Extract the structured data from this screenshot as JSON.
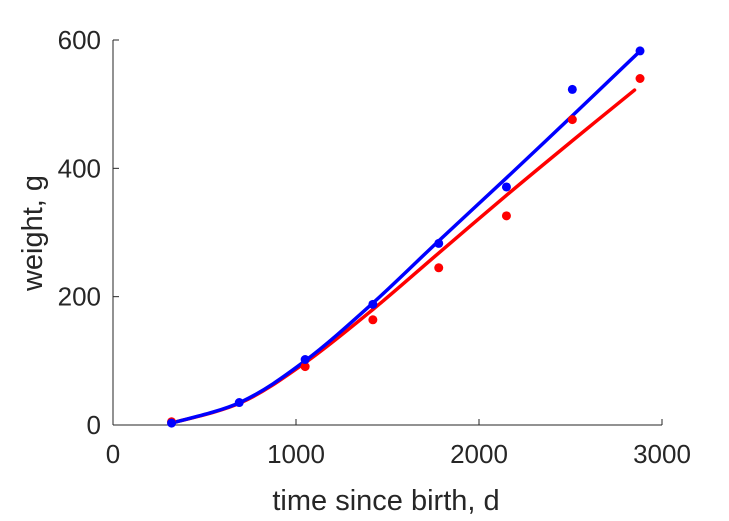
{
  "chart_data": {
    "type": "scatter",
    "xlabel": "time since birth, d",
    "ylabel": "weight, g",
    "xlim": [
      0,
      3000
    ],
    "ylim": [
      0,
      600
    ],
    "xticks": [
      0,
      1000,
      2000,
      3000
    ],
    "yticks": [
      0,
      200,
      400,
      600
    ],
    "xtick_labels": [
      "0",
      "1000",
      "2000",
      "3000"
    ],
    "ytick_labels": [
      "0",
      "200",
      "400",
      "600"
    ],
    "grid": false,
    "series": [
      {
        "color": "#ff0000",
        "points": [
          {
            "x": 320,
            "y": 5
          },
          {
            "x": 1050,
            "y": 91
          },
          {
            "x": 1420,
            "y": 164
          },
          {
            "x": 1780,
            "y": 245
          },
          {
            "x": 2150,
            "y": 326
          },
          {
            "x": 2510,
            "y": 476
          },
          {
            "x": 2880,
            "y": 540
          }
        ],
        "fit": [
          {
            "x": 320,
            "y": 3
          },
          {
            "x": 700,
            "y": 35
          },
          {
            "x": 1050,
            "y": 97
          },
          {
            "x": 1420,
            "y": 180
          },
          {
            "x": 1780,
            "y": 268
          },
          {
            "x": 2150,
            "y": 358
          },
          {
            "x": 2510,
            "y": 443
          },
          {
            "x": 2850,
            "y": 522
          }
        ]
      },
      {
        "color": "#0000ff",
        "points": [
          {
            "x": 320,
            "y": 3
          },
          {
            "x": 690,
            "y": 35
          },
          {
            "x": 1050,
            "y": 102
          },
          {
            "x": 1420,
            "y": 188
          },
          {
            "x": 1780,
            "y": 283
          },
          {
            "x": 2150,
            "y": 371
          },
          {
            "x": 2510,
            "y": 523
          },
          {
            "x": 2880,
            "y": 583
          }
        ],
        "fit": [
          {
            "x": 320,
            "y": 3
          },
          {
            "x": 700,
            "y": 36
          },
          {
            "x": 1050,
            "y": 100
          },
          {
            "x": 1420,
            "y": 190
          },
          {
            "x": 1780,
            "y": 287
          },
          {
            "x": 2150,
            "y": 385
          },
          {
            "x": 2510,
            "y": 482
          },
          {
            "x": 2870,
            "y": 580
          }
        ]
      }
    ]
  }
}
